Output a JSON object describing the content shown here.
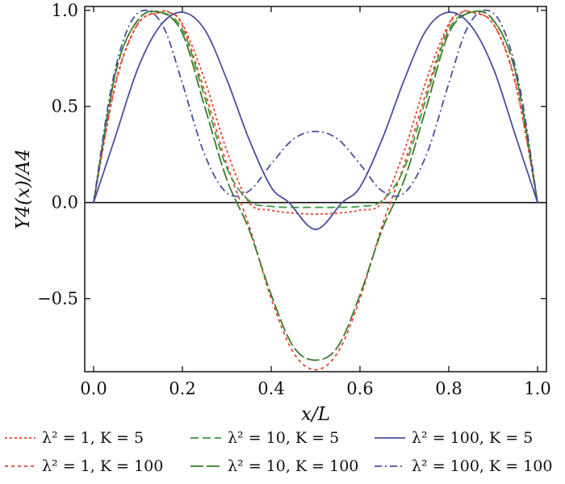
{
  "chart_data": {
    "type": "line",
    "title": "",
    "xlabel": "x/L",
    "ylabel": "Y4(x)/A4",
    "xlim": [
      -0.02,
      1.02
    ],
    "ylim": [
      -0.88,
      1.02
    ],
    "grid": false,
    "legend_placement": "bottom",
    "xticks": [
      "0.0",
      "0.2",
      "0.4",
      "0.6",
      "0.8",
      "1.0"
    ],
    "xtick_values": [
      0.0,
      0.2,
      0.4,
      0.6,
      0.8,
      1.0
    ],
    "yticks": [
      "1.0",
      "0.5",
      "0.0",
      "−0.5"
    ],
    "ytick_values": [
      1.0,
      0.5,
      0.0,
      -0.5
    ],
    "zero_line": 0,
    "series": [
      {
        "name": "λ² = 1, K = 5",
        "color": "#e8432c",
        "dash": "3,3",
        "x": [
          0.0,
          0.05,
          0.1,
          0.15,
          0.17,
          0.2,
          0.25,
          0.3,
          0.35,
          0.4,
          0.45,
          0.5,
          0.55,
          0.6,
          0.65,
          0.7,
          0.75,
          0.8,
          0.83,
          0.85,
          0.9,
          0.95,
          1.0
        ],
        "y": [
          0.0,
          0.63,
          0.93,
          0.99,
          0.99,
          0.93,
          0.64,
          0.27,
          0.0,
          -0.04,
          -0.055,
          -0.06,
          -0.055,
          -0.04,
          0.0,
          0.27,
          0.64,
          0.93,
          0.99,
          0.99,
          0.93,
          0.63,
          0.0
        ]
      },
      {
        "name": "λ² = 1, K = 100",
        "color": "#e8432c",
        "dash": "4,4",
        "x": [
          0.0,
          0.05,
          0.1,
          0.15,
          0.17,
          0.2,
          0.25,
          0.3,
          0.35,
          0.4,
          0.45,
          0.5,
          0.55,
          0.6,
          0.65,
          0.7,
          0.75,
          0.8,
          0.83,
          0.85,
          0.9,
          0.95,
          1.0
        ],
        "y": [
          0.0,
          0.62,
          0.93,
          0.99,
          0.99,
          0.92,
          0.58,
          0.2,
          -0.12,
          -0.5,
          -0.78,
          -0.87,
          -0.78,
          -0.5,
          -0.12,
          0.2,
          0.58,
          0.92,
          0.99,
          0.99,
          0.93,
          0.62,
          0.0
        ]
      },
      {
        "name": "λ² = 10, K = 5",
        "color": "#3d9a3d",
        "dash": "10,5",
        "x": [
          0.0,
          0.05,
          0.1,
          0.15,
          0.2,
          0.25,
          0.3,
          0.35,
          0.4,
          0.45,
          0.5,
          0.55,
          0.6,
          0.65,
          0.7,
          0.75,
          0.8,
          0.85,
          0.9,
          0.95,
          1.0
        ],
        "y": [
          0.0,
          0.68,
          0.95,
          0.99,
          0.9,
          0.55,
          0.18,
          0.01,
          -0.02,
          -0.025,
          -0.025,
          -0.025,
          -0.02,
          0.01,
          0.18,
          0.55,
          0.9,
          0.99,
          0.95,
          0.68,
          0.0
        ]
      },
      {
        "name": "λ² = 10, K = 100",
        "color": "#3d7a2a",
        "dash": "16,4",
        "x": [
          0.0,
          0.05,
          0.1,
          0.15,
          0.2,
          0.25,
          0.3,
          0.35,
          0.4,
          0.45,
          0.5,
          0.55,
          0.6,
          0.65,
          0.7,
          0.75,
          0.8,
          0.85,
          0.9,
          0.95,
          1.0
        ],
        "y": [
          0.0,
          0.68,
          0.95,
          0.99,
          0.88,
          0.5,
          0.12,
          -0.14,
          -0.48,
          -0.75,
          -0.82,
          -0.75,
          -0.48,
          -0.14,
          0.12,
          0.5,
          0.88,
          0.99,
          0.95,
          0.68,
          0.0
        ]
      },
      {
        "name": "λ² = 100, K = 5",
        "color": "#4a4fa0",
        "dash": "",
        "x": [
          0.0,
          0.05,
          0.1,
          0.15,
          0.2,
          0.25,
          0.3,
          0.35,
          0.4,
          0.44,
          0.5,
          0.56,
          0.6,
          0.65,
          0.7,
          0.75,
          0.8,
          0.85,
          0.9,
          0.95,
          1.0
        ],
        "y": [
          0.0,
          0.35,
          0.7,
          0.92,
          0.99,
          0.9,
          0.64,
          0.33,
          0.08,
          0.0,
          -0.14,
          0.0,
          0.08,
          0.33,
          0.64,
          0.9,
          0.99,
          0.92,
          0.7,
          0.35,
          0.0
        ]
      },
      {
        "name": "λ² = 100, K = 100",
        "color": "#4a4fa0",
        "dash": "9,4,2,4",
        "x": [
          0.0,
          0.04,
          0.08,
          0.12,
          0.16,
          0.2,
          0.25,
          0.3,
          0.35,
          0.4,
          0.45,
          0.5,
          0.55,
          0.6,
          0.65,
          0.7,
          0.75,
          0.8,
          0.84,
          0.88,
          0.92,
          0.96,
          1.0
        ],
        "y": [
          0.0,
          0.6,
          0.92,
          1.0,
          0.9,
          0.62,
          0.25,
          0.05,
          0.06,
          0.2,
          0.33,
          0.37,
          0.33,
          0.2,
          0.06,
          0.05,
          0.25,
          0.62,
          0.9,
          1.0,
          0.92,
          0.6,
          0.0
        ]
      }
    ]
  }
}
